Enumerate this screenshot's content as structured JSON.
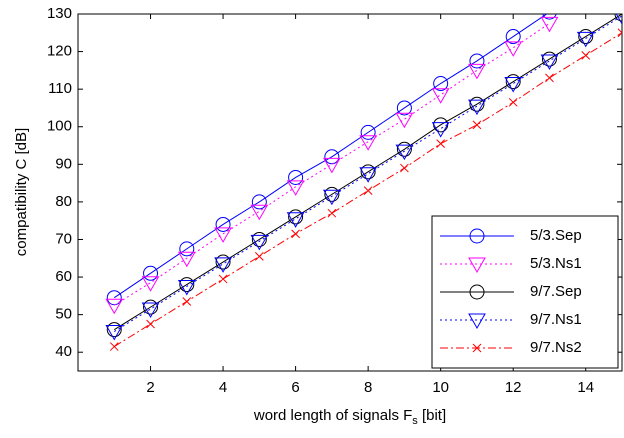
{
  "chart_data": {
    "type": "line",
    "ylabel": "compatibility C [dB]",
    "xlabel": [
      "word length of signals F",
      "s",
      " [bit]"
    ],
    "xlim": [
      0,
      15
    ],
    "xticks": [
      2,
      4,
      6,
      8,
      10,
      12,
      14
    ],
    "ylim": [
      35,
      130
    ],
    "yticks": [
      40,
      50,
      60,
      70,
      80,
      90,
      100,
      110,
      120,
      130
    ],
    "grid": false,
    "legend": "lower right",
    "series": [
      {
        "name": "5/3.Sep",
        "color": "#0000ff",
        "dash": "solid",
        "marker": "circle",
        "x": [
          1,
          2,
          3,
          4,
          5,
          6,
          7,
          8,
          9,
          10,
          11,
          12,
          13
        ],
        "values": [
          54.5,
          61,
          67.5,
          74,
          80,
          86.5,
          92,
          98.5,
          105,
          111.5,
          117.5,
          124,
          130.5
        ]
      },
      {
        "name": "5/3.Ns1",
        "color": "#ff00ff",
        "dash": "dotted",
        "marker": "triangle-down",
        "x": [
          1,
          2,
          3,
          4,
          5,
          6,
          7,
          8,
          9,
          10,
          11,
          12,
          13
        ],
        "values": [
          52.5,
          58.5,
          65,
          71.5,
          77.5,
          84,
          90,
          96,
          102,
          108.5,
          115,
          121,
          127.5
        ]
      },
      {
        "name": "9/7.Sep",
        "color": "#000000",
        "dash": "solid",
        "marker": "circle",
        "x": [
          1,
          2,
          3,
          4,
          5,
          6,
          7,
          8,
          9,
          10,
          11,
          12,
          13,
          14,
          15
        ],
        "values": [
          46,
          52,
          58,
          64,
          70,
          76,
          82,
          88,
          94,
          100.5,
          106,
          112,
          118,
          124,
          130
        ]
      },
      {
        "name": "9/7.Ns1",
        "color": "#0000ff",
        "dash": "dotted",
        "marker": "triangle-down",
        "x": [
          1,
          2,
          3,
          4,
          5,
          6,
          7,
          8,
          9,
          10,
          11,
          12,
          13,
          14,
          15
        ],
        "values": [
          45.5,
          51.5,
          57.5,
          63.5,
          69.5,
          75.5,
          81.5,
          87.5,
          93.5,
          99.5,
          105.5,
          111.5,
          117.5,
          123.5,
          129.5
        ]
      },
      {
        "name": "9/7.Ns2",
        "color": "#ff0000",
        "dash": "dashdot",
        "marker": "x",
        "x": [
          1,
          2,
          3,
          4,
          5,
          6,
          7,
          8,
          9,
          10,
          11,
          12,
          13,
          14,
          15
        ],
        "values": [
          41.5,
          47.5,
          53.5,
          59.5,
          65.5,
          71.5,
          77,
          83,
          89,
          95.5,
          100.5,
          106.5,
          113,
          119,
          125
        ]
      }
    ]
  }
}
